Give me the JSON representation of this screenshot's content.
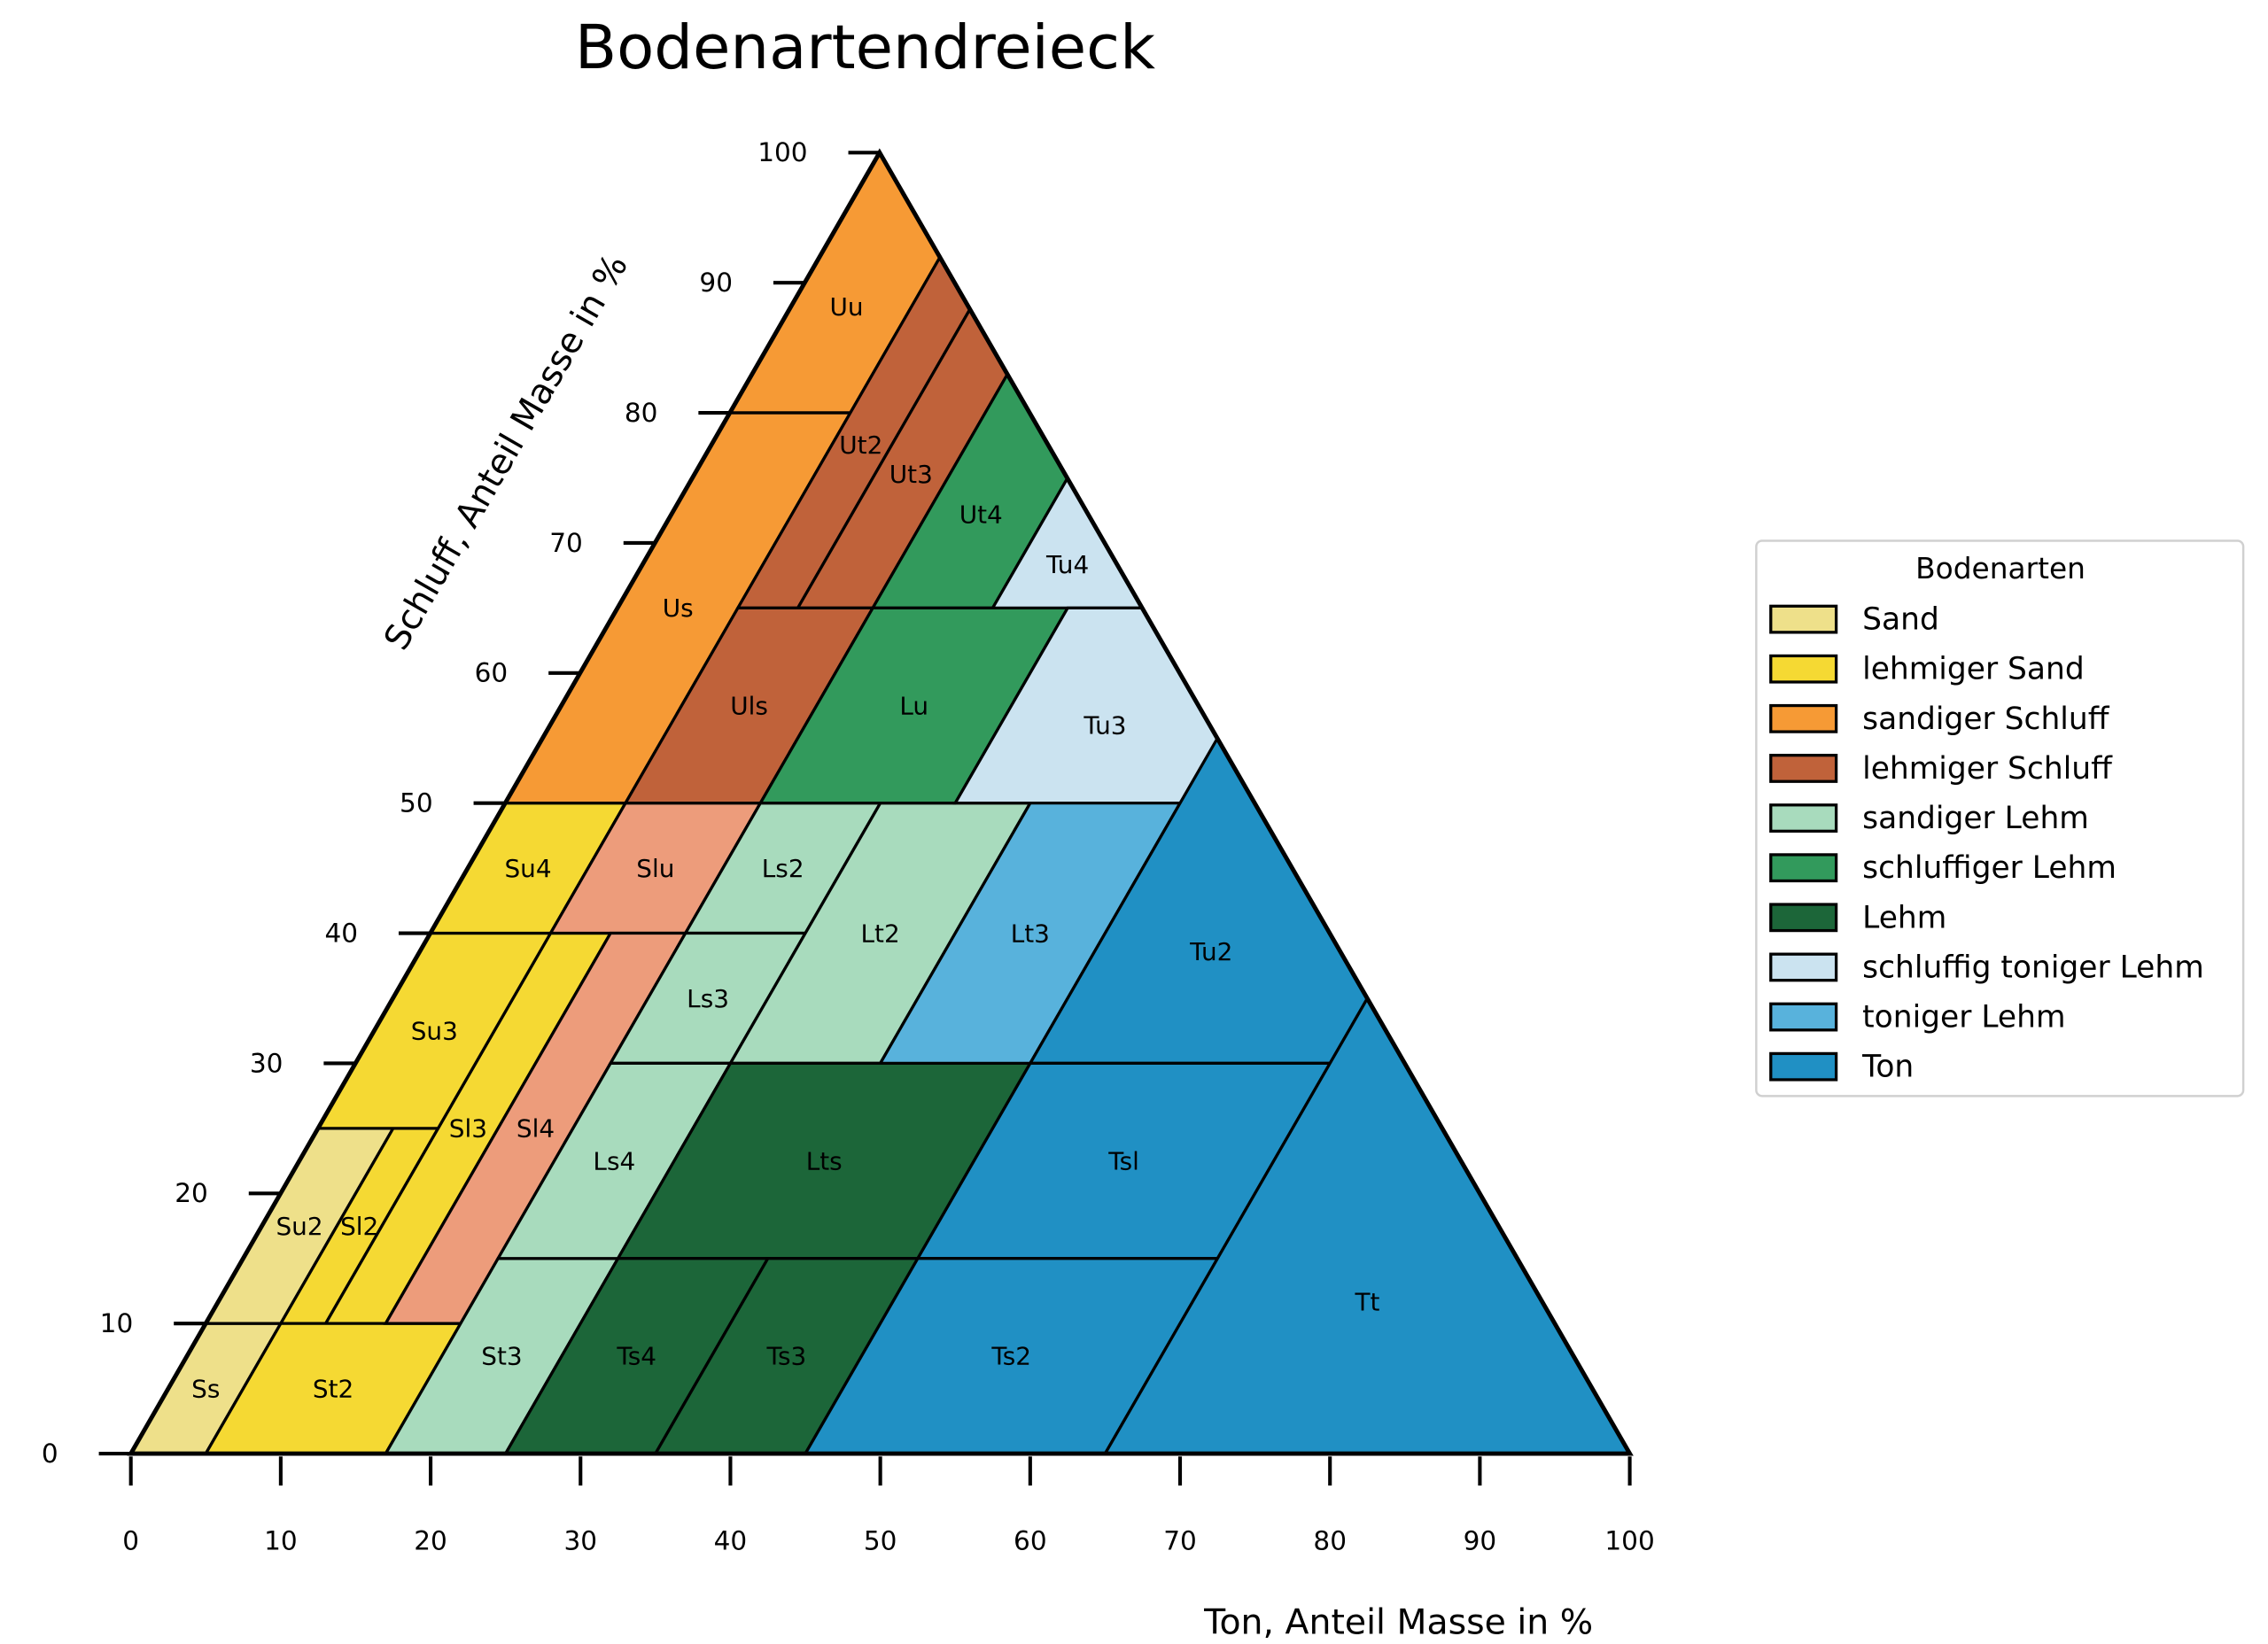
{
  "chart_data": {
    "type": "ternary-area",
    "title": "Bodenartendreieck",
    "xlabel": "Ton, Anteil Masse in %",
    "ylabel": "Schluff, Anteil Masse in %",
    "xlim": [
      0,
      100
    ],
    "ylim": [
      0,
      100
    ],
    "x_ticks": [
      "0",
      "10",
      "20",
      "30",
      "40",
      "50",
      "60",
      "70",
      "80",
      "90",
      "100"
    ],
    "y_ticks": [
      "0",
      "10",
      "20",
      "30",
      "40",
      "50",
      "60",
      "70",
      "80",
      "90",
      "100"
    ],
    "grid": false,
    "legend": {
      "title": "Bodenarten",
      "placement": "right",
      "entries": [
        {
          "label": "Sand",
          "color": "#eee08a"
        },
        {
          "label": "lehmiger Sand",
          "color": "#f5d933"
        },
        {
          "label": "sandiger Schluff",
          "color": "#f69a35"
        },
        {
          "label": "lehmiger Schluff",
          "color": "#c0623a"
        },
        {
          "label": "sandiger Lehm",
          "color": "#a8dbbd"
        },
        {
          "label": "schluffiger Lehm",
          "color": "#329a5c"
        },
        {
          "label": "Lehm",
          "color": "#1c6639"
        },
        {
          "label": "schluffig toniger Lehm",
          "color": "#cbe3f0"
        },
        {
          "label": "toniger Lehm",
          "color": "#58b2dc"
        },
        {
          "label": "Ton",
          "color": "#2090c4"
        }
      ]
    },
    "unlisted_color": "#ed9c7b",
    "regions": [
      {
        "name": "Ss",
        "ton": [
          0,
          5
        ],
        "schluff": [
          0,
          10
        ],
        "group": "Sand"
      },
      {
        "name": "Su2",
        "ton": [
          0,
          5
        ],
        "schluff": [
          10,
          25
        ],
        "group": "Sand"
      },
      {
        "name": "Sl2",
        "ton": [
          5,
          8
        ],
        "schluff": [
          10,
          25
        ],
        "group": "lehmiger Sand"
      },
      {
        "name": "Sl3",
        "ton": [
          8,
          12
        ],
        "schluff": [
          10,
          40
        ],
        "group": "lehmiger Sand"
      },
      {
        "name": "St2",
        "ton": [
          5,
          17
        ],
        "schluff": [
          0,
          10
        ],
        "group": "lehmiger Sand"
      },
      {
        "name": "Su3",
        "ton": [
          0,
          8
        ],
        "schluff": [
          25,
          40
        ],
        "group": "lehmiger Sand"
      },
      {
        "name": "Su4",
        "ton": [
          0,
          8
        ],
        "schluff": [
          40,
          50
        ],
        "group": "lehmiger Sand"
      },
      {
        "name": "Slu",
        "ton": [
          8,
          17
        ],
        "schluff": [
          40,
          50
        ],
        "group": ""
      },
      {
        "name": "Sl4",
        "ton": [
          12,
          17
        ],
        "schluff": [
          10,
          40
        ],
        "group": ""
      },
      {
        "name": "St3",
        "ton": [
          17,
          25
        ],
        "schluff": [
          0,
          15
        ],
        "group": "sandiger Lehm"
      },
      {
        "name": "Ls2",
        "ton": [
          17,
          25
        ],
        "schluff": [
          40,
          50
        ],
        "group": "sandiger Lehm"
      },
      {
        "name": "Ls3",
        "ton": [
          17,
          25
        ],
        "schluff": [
          30,
          40
        ],
        "group": "sandiger Lehm"
      },
      {
        "name": "Ls4",
        "ton": [
          17,
          25
        ],
        "schluff": [
          15,
          30
        ],
        "group": "sandiger Lehm"
      },
      {
        "name": "Lt2",
        "ton": [
          25,
          35
        ],
        "schluff": [
          30,
          50
        ],
        "group": "sandiger Lehm"
      },
      {
        "name": "Lts",
        "ton": [
          25,
          45
        ],
        "schluff": [
          15,
          30
        ],
        "group": "Lehm"
      },
      {
        "name": "Ts4",
        "ton": [
          25,
          35
        ],
        "schluff": [
          0,
          15
        ],
        "group": "Lehm"
      },
      {
        "name": "Ts3",
        "ton": [
          35,
          45
        ],
        "schluff": [
          0,
          15
        ],
        "group": "Lehm"
      },
      {
        "name": "Uu",
        "ton": [
          0,
          8
        ],
        "schluff": [
          80,
          100
        ],
        "group": "sandiger Schluff"
      },
      {
        "name": "Us",
        "ton": [
          0,
          8
        ],
        "schluff": [
          50,
          80
        ],
        "group": "sandiger Schluff"
      },
      {
        "name": "Ut2",
        "ton": [
          8,
          12
        ],
        "schluff": [
          65,
          92
        ],
        "group": "lehmiger Schluff"
      },
      {
        "name": "Ut3",
        "ton": [
          12,
          17
        ],
        "schluff": [
          65,
          88
        ],
        "group": "lehmiger Schluff"
      },
      {
        "name": "Uls",
        "ton": [
          8,
          17
        ],
        "schluff": [
          50,
          65
        ],
        "group": "lehmiger Schluff"
      },
      {
        "name": "Ut4",
        "ton": [
          17,
          25
        ],
        "schluff": [
          65,
          83
        ],
        "group": "schluffiger Lehm"
      },
      {
        "name": "Lu",
        "ton": [
          17,
          30
        ],
        "schluff": [
          50,
          65
        ],
        "group": "schluffiger Lehm"
      },
      {
        "name": "Tu4",
        "ton": [
          25,
          35
        ],
        "schluff": [
          65,
          75
        ],
        "group": "schluffig toniger Lehm"
      },
      {
        "name": "Tu3",
        "ton": [
          30,
          50
        ],
        "schluff": [
          50,
          65
        ],
        "group": "schluffig toniger Lehm"
      },
      {
        "name": "Lt3",
        "ton": [
          35,
          45
        ],
        "schluff": [
          30,
          50
        ],
        "group": "toniger Lehm"
      },
      {
        "name": "Tu2",
        "ton": [
          45,
          65
        ],
        "schluff": [
          30,
          55
        ],
        "group": "Ton"
      },
      {
        "name": "Tsl",
        "ton": [
          45,
          65
        ],
        "schluff": [
          15,
          30
        ],
        "group": "Ton"
      },
      {
        "name": "Ts2",
        "ton": [
          45,
          65
        ],
        "schluff": [
          0,
          15
        ],
        "group": "Ton"
      },
      {
        "name": "Tt",
        "ton": [
          65,
          100
        ],
        "schluff": [
          0,
          35
        ],
        "group": "Ton"
      }
    ]
  }
}
